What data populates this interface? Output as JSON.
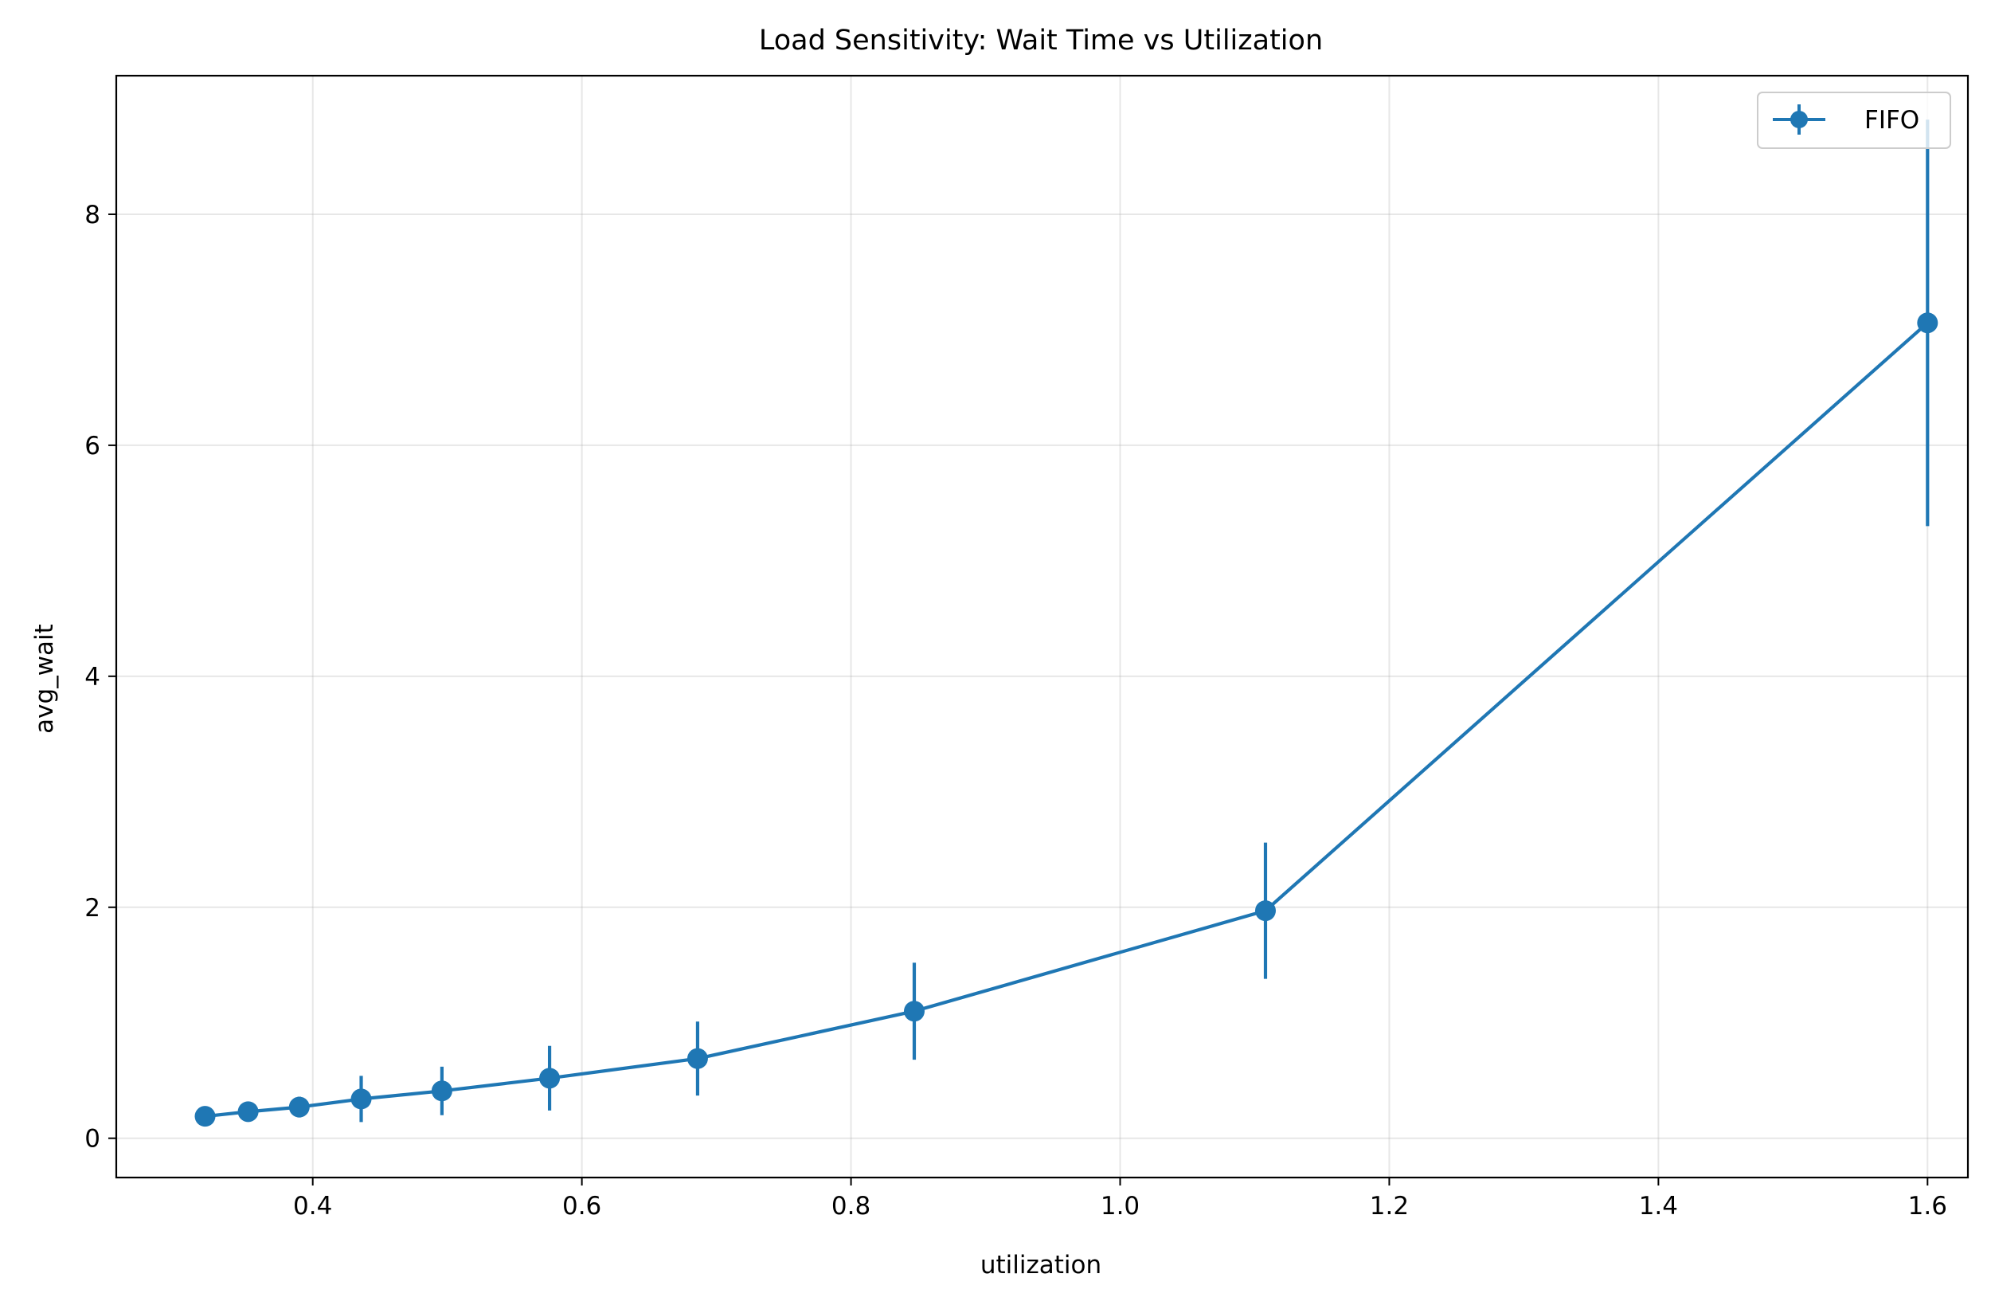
{
  "chart_data": {
    "type": "line",
    "title": "Load Sensitivity: Wait Time vs Utilization",
    "xlabel": "utilization",
    "ylabel": "avg_wait",
    "xlim": [
      0.254,
      1.63
    ],
    "ylim": [
      -0.34,
      9.2
    ],
    "xticks": [
      0.4,
      0.6,
      0.8,
      1.0,
      1.2,
      1.4,
      1.6
    ],
    "xtick_labels": [
      "0.4",
      "0.6",
      "0.8",
      "1.0",
      "1.2",
      "1.4",
      "1.6"
    ],
    "yticks": [
      0,
      2,
      4,
      6,
      8
    ],
    "ytick_labels": [
      "0",
      "2",
      "4",
      "6",
      "8"
    ],
    "grid": true,
    "legend_position": "top-right",
    "series": [
      {
        "name": "FIFO",
        "color": "#1f77b4",
        "marker": "circle",
        "x": [
          0.32,
          0.352,
          0.39,
          0.436,
          0.496,
          0.576,
          0.686,
          0.847,
          1.108,
          1.6
        ],
        "y": [
          0.19,
          0.23,
          0.27,
          0.34,
          0.41,
          0.52,
          0.69,
          1.1,
          1.97,
          7.06
        ],
        "yerr": [
          0.03,
          0.07,
          0.09,
          0.2,
          0.21,
          0.28,
          0.32,
          0.42,
          0.59,
          1.76
        ]
      }
    ]
  }
}
